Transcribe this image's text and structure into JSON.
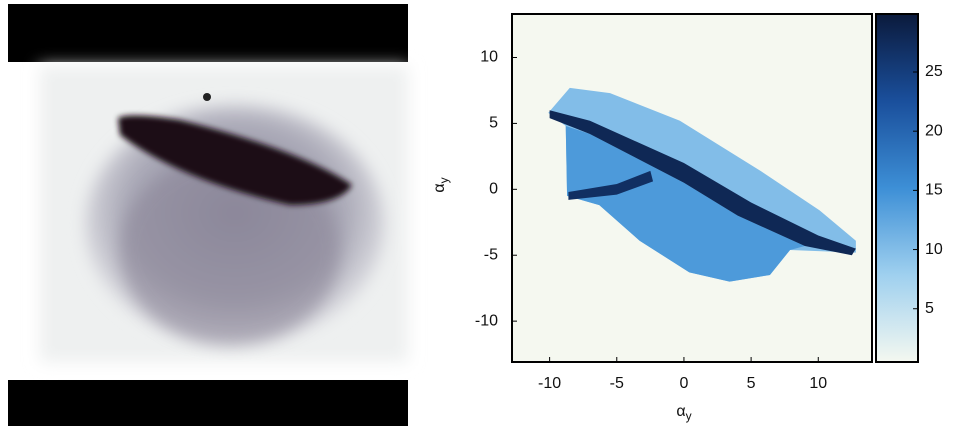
{
  "chart_data": {
    "type": "heatmap-regions",
    "xlabel": {
      "symbol": "α",
      "subscript": "y"
    },
    "ylabel": {
      "symbol": "α",
      "subscript": "y"
    },
    "xlim": [
      -12.8,
      14
    ],
    "xticks": [
      -10,
      -5,
      0,
      5,
      10
    ],
    "ylim": [
      -13.1,
      13.3
    ],
    "yticks": [
      10,
      5,
      0,
      -5,
      -10
    ],
    "clim": [
      0.5,
      29.9
    ],
    "cticks": [
      5,
      10,
      15,
      20,
      25
    ],
    "colormap": [
      "#f4f8f0",
      "#9fd0ef",
      "#3d8fd6",
      "#1a4f9c",
      "#0b1a3c"
    ],
    "background": "#f5f8f0",
    "regions": [
      {
        "value": 10,
        "points": [
          [
            -10.1,
            5.8
          ],
          [
            -8.5,
            7.7
          ],
          [
            -5.5,
            7.3
          ],
          [
            -0.3,
            5.2
          ],
          [
            5.7,
            1.4
          ],
          [
            10.1,
            -1.6
          ],
          [
            12.8,
            -3.9
          ],
          [
            12.8,
            -4.8
          ],
          [
            7.9,
            -4.6
          ],
          [
            6.4,
            -6.5
          ],
          [
            3.4,
            -7.0
          ],
          [
            0.4,
            -6.3
          ],
          [
            -3.3,
            -3.9
          ],
          [
            -6.3,
            -1.2
          ],
          [
            -8.7,
            -0.5
          ],
          [
            -8.8,
            4.8
          ]
        ]
      },
      {
        "value": 14,
        "points": [
          [
            -8.8,
            4.8
          ],
          [
            -7,
            4.2
          ],
          [
            0,
            0.5
          ],
          [
            4,
            -2
          ],
          [
            9,
            -4.3
          ],
          [
            7.9,
            -4.6
          ],
          [
            6.4,
            -6.5
          ],
          [
            3.4,
            -7.0
          ],
          [
            0.4,
            -6.3
          ],
          [
            -3.3,
            -3.9
          ],
          [
            -6.3,
            -1.2
          ],
          [
            -8.7,
            -0.5
          ]
        ]
      },
      {
        "value": 28,
        "points": [
          [
            -10,
            6
          ],
          [
            -7,
            5.2
          ],
          [
            0,
            2
          ],
          [
            5,
            -1
          ],
          [
            10,
            -3.5
          ],
          [
            12.8,
            -4.5
          ],
          [
            12.5,
            -5
          ],
          [
            9,
            -4.3
          ],
          [
            4,
            -2
          ],
          [
            0,
            0.5
          ],
          [
            -7,
            4.2
          ],
          [
            -10,
            5.4
          ]
        ]
      },
      {
        "value": 27,
        "points": [
          [
            -8.6,
            -0.2
          ],
          [
            -5,
            0.4
          ],
          [
            -2.5,
            1.4
          ],
          [
            -2.3,
            0.6
          ],
          [
            -5,
            -0.4
          ],
          [
            -8.6,
            -0.8
          ]
        ]
      }
    ]
  }
}
